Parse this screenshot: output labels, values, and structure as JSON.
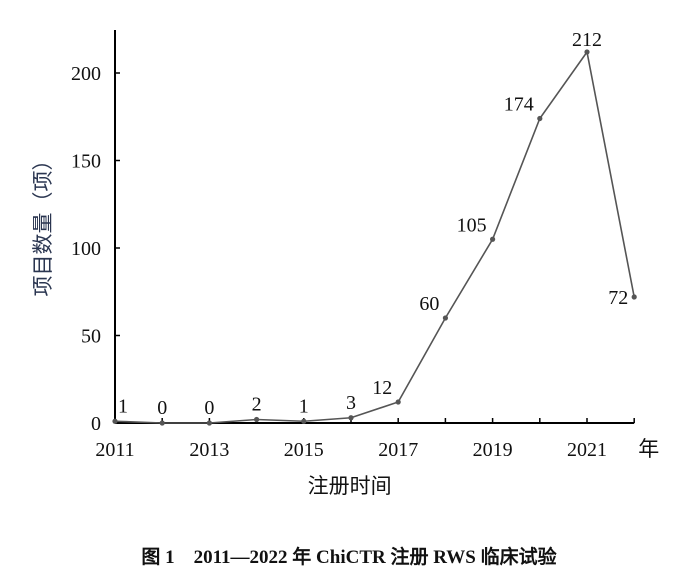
{
  "chart_data": {
    "type": "line",
    "title": "",
    "xlabel": "注册时间",
    "x_unit": "年",
    "ylabel": "项目数量（项）",
    "x": [
      2011,
      2012,
      2013,
      2014,
      2015,
      2016,
      2017,
      2018,
      2019,
      2020,
      2021,
      2022
    ],
    "values": [
      1,
      0,
      0,
      2,
      1,
      3,
      12,
      60,
      105,
      174,
      212,
      72
    ],
    "data_labels": [
      "1",
      "0",
      "0",
      "2",
      "1",
      "3",
      "12",
      "60",
      "105",
      "174",
      "212",
      "72"
    ],
    "xticks": [
      "2011",
      "2013",
      "2015",
      "2017",
      "2019",
      "2021"
    ],
    "yticks": [
      "0",
      "50",
      "100",
      "150",
      "200"
    ],
    "xlim": [
      2011,
      2022
    ],
    "ylim": [
      0,
      220
    ],
    "grid": false,
    "line_color": "#555555"
  },
  "caption": "图 1　2011—2022 年 ChiCTR 注册 RWS 临床试验"
}
